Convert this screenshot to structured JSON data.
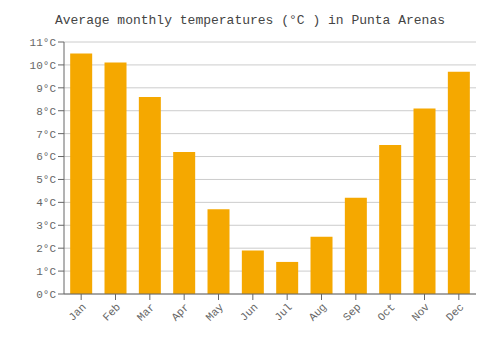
{
  "chart_data": {
    "type": "bar",
    "title": "Average monthly temperatures (°C ) in Punta Arenas",
    "categories": [
      "Jan",
      "Feb",
      "Mar",
      "Apr",
      "May",
      "Jun",
      "Jul",
      "Aug",
      "Sep",
      "Oct",
      "Nov",
      "Dec"
    ],
    "values": [
      10.5,
      10.1,
      8.6,
      6.2,
      3.7,
      1.9,
      1.4,
      2.5,
      4.2,
      6.5,
      8.1,
      9.7
    ],
    "color": "#F5A800",
    "ylim": [
      0,
      11
    ],
    "yticks": [
      {
        "value": 0,
        "label": "0°C"
      },
      {
        "value": 1,
        "label": "1°C"
      },
      {
        "value": 2,
        "label": "2°C"
      },
      {
        "value": 3,
        "label": "3°C"
      },
      {
        "value": 4,
        "label": "4°C"
      },
      {
        "value": 5,
        "label": "5°C"
      },
      {
        "value": 6,
        "label": "6°C"
      },
      {
        "value": 7,
        "label": "7°C"
      },
      {
        "value": 8,
        "label": "8°C"
      },
      {
        "value": 9,
        "label": "9°C"
      },
      {
        "value": 10,
        "label": "10°C"
      },
      {
        "value": 11,
        "label": "11°C"
      }
    ],
    "grid": true
  }
}
